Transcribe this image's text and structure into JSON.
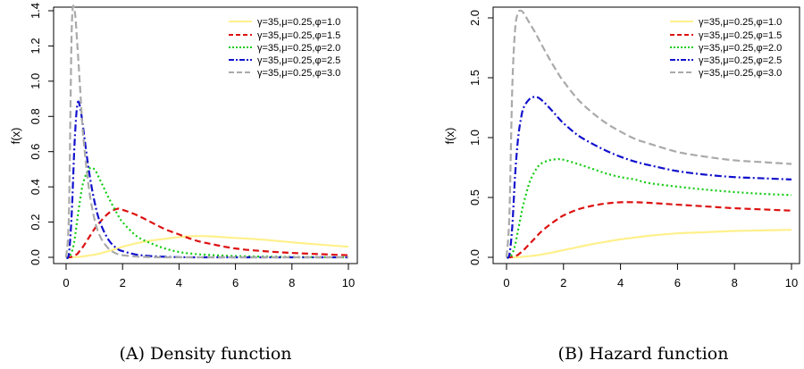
{
  "chart_data": [
    {
      "type": "line",
      "caption_label": "(A)",
      "caption_text": "Density function",
      "ylabel": "f(x)",
      "xlabel": "",
      "xlim": [
        0,
        10
      ],
      "ylim": [
        0,
        1.4
      ],
      "x_ticks": [
        "0",
        "2",
        "4",
        "6",
        "8",
        "10"
      ],
      "y_ticks": [
        "0.0",
        "0.2",
        "0.4",
        "0.6",
        "0.8",
        "1.0",
        "1.2",
        "1.4"
      ],
      "x": [
        0,
        0.1,
        0.2,
        0.3,
        0.4,
        0.5,
        0.6,
        0.8,
        1.0,
        1.2,
        1.5,
        1.8,
        2,
        2.5,
        3,
        3.5,
        4,
        4.5,
        5,
        6,
        7,
        8,
        9,
        10
      ],
      "series": [
        {
          "name": "γ=35,μ=0.25,φ=1.0",
          "color": "#fff08c",
          "dash": "",
          "width": 2.2,
          "values": [
            0,
            0,
            0,
            0.001,
            0.002,
            0.003,
            0.005,
            0.01,
            0.015,
            0.022,
            0.035,
            0.05,
            0.06,
            0.08,
            0.095,
            0.105,
            0.115,
            0.12,
            0.12,
            0.11,
            0.1,
            0.085,
            0.072,
            0.06
          ]
        },
        {
          "name": "γ=35,μ=0.25,φ=1.5",
          "color": "#dd1111",
          "dash": "7,4",
          "width": 2.2,
          "values": [
            0,
            0,
            0.003,
            0.01,
            0.02,
            0.04,
            0.06,
            0.11,
            0.16,
            0.2,
            0.25,
            0.275,
            0.27,
            0.24,
            0.2,
            0.16,
            0.13,
            0.1,
            0.08,
            0.05,
            0.035,
            0.025,
            0.018,
            0.012
          ]
        },
        {
          "name": "γ=35,μ=0.25,φ=2.0",
          "color": "#11cc11",
          "dash": "2,3",
          "width": 2.2,
          "values": [
            0,
            0.005,
            0.03,
            0.1,
            0.22,
            0.33,
            0.42,
            0.5,
            0.5,
            0.44,
            0.34,
            0.25,
            0.2,
            0.12,
            0.08,
            0.05,
            0.03,
            0.02,
            0.014,
            0.007,
            0.004,
            0.002,
            0.001,
            0
          ]
        },
        {
          "name": "γ=35,μ=0.25,φ=2.5",
          "color": "#1111cc",
          "dash": "8,3,2,3",
          "width": 2.2,
          "values": [
            0,
            0.02,
            0.25,
            0.65,
            0.87,
            0.85,
            0.74,
            0.5,
            0.32,
            0.2,
            0.1,
            0.05,
            0.035,
            0.015,
            0.007,
            0.003,
            0.001,
            0,
            0,
            0,
            0,
            0,
            0,
            0
          ]
        },
        {
          "name": "γ=35,μ=0.25,φ=3.0",
          "color": "#aaaaaa",
          "dash": "8,4",
          "width": 2.2,
          "values": [
            0,
            0.25,
            1.3,
            1.4,
            1.2,
            0.95,
            0.7,
            0.4,
            0.22,
            0.12,
            0.05,
            0.02,
            0.012,
            0.004,
            0.001,
            0,
            0,
            0,
            0,
            0,
            0,
            0,
            0,
            0
          ]
        }
      ]
    },
    {
      "type": "line",
      "caption_label": "(B)",
      "caption_text": "Hazard function",
      "ylabel": "f(x)",
      "xlabel": "",
      "xlim": [
        0,
        10
      ],
      "ylim": [
        0,
        2.0
      ],
      "x_ticks": [
        "0",
        "2",
        "4",
        "6",
        "8",
        "10"
      ],
      "y_ticks": [
        "0.0",
        "0.5",
        "1.0",
        "1.5",
        "2.0"
      ],
      "x": [
        0,
        0.1,
        0.2,
        0.3,
        0.4,
        0.5,
        0.6,
        0.8,
        1.0,
        1.2,
        1.5,
        1.8,
        2,
        2.5,
        3,
        3.5,
        4,
        4.5,
        5,
        6,
        7,
        8,
        9,
        10
      ],
      "series": [
        {
          "name": "γ=35,μ=0.25,φ=1.0",
          "color": "#fff08c",
          "dash": "",
          "width": 2.2,
          "values": [
            0,
            0,
            0,
            0,
            0.001,
            0.003,
            0.005,
            0.01,
            0.015,
            0.022,
            0.035,
            0.05,
            0.06,
            0.085,
            0.11,
            0.13,
            0.15,
            0.165,
            0.18,
            0.2,
            0.21,
            0.22,
            0.225,
            0.23
          ]
        },
        {
          "name": "γ=35,μ=0.25,φ=1.5",
          "color": "#dd1111",
          "dash": "7,4",
          "width": 2.2,
          "values": [
            0,
            0,
            0.003,
            0.01,
            0.02,
            0.04,
            0.06,
            0.11,
            0.16,
            0.21,
            0.27,
            0.32,
            0.35,
            0.4,
            0.43,
            0.45,
            0.46,
            0.46,
            0.455,
            0.44,
            0.425,
            0.41,
            0.4,
            0.39
          ]
        },
        {
          "name": "γ=35,μ=0.25,φ=2.0",
          "color": "#11cc11",
          "dash": "2,3",
          "width": 2.2,
          "values": [
            0,
            0.005,
            0.03,
            0.1,
            0.22,
            0.34,
            0.45,
            0.62,
            0.72,
            0.78,
            0.81,
            0.82,
            0.815,
            0.78,
            0.74,
            0.7,
            0.67,
            0.65,
            0.62,
            0.59,
            0.565,
            0.545,
            0.53,
            0.52
          ]
        },
        {
          "name": "γ=35,μ=0.25,φ=2.5",
          "color": "#1111cc",
          "dash": "8,3,2,3",
          "width": 2.2,
          "values": [
            0,
            0.02,
            0.25,
            0.68,
            0.98,
            1.15,
            1.25,
            1.32,
            1.34,
            1.32,
            1.25,
            1.17,
            1.12,
            1.02,
            0.95,
            0.89,
            0.84,
            0.8,
            0.77,
            0.72,
            0.69,
            0.67,
            0.66,
            0.65
          ]
        },
        {
          "name": "γ=35,μ=0.25,φ=3.0",
          "color": "#aaaaaa",
          "dash": "8,4",
          "width": 2.2,
          "values": [
            0,
            0.35,
            1.4,
            1.9,
            2.04,
            2.06,
            2.04,
            1.96,
            1.88,
            1.79,
            1.66,
            1.54,
            1.47,
            1.32,
            1.21,
            1.12,
            1.05,
            0.99,
            0.95,
            0.88,
            0.84,
            0.81,
            0.795,
            0.78
          ]
        }
      ]
    }
  ]
}
